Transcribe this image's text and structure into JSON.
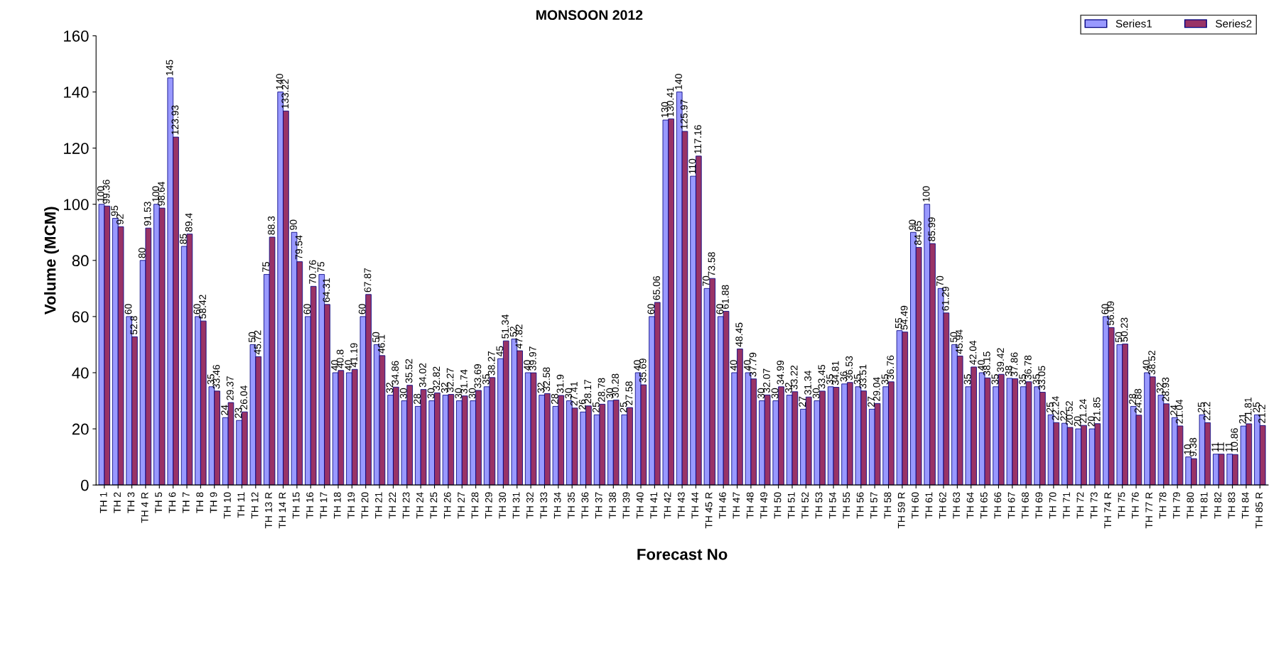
{
  "chart_data": {
    "type": "bar",
    "title": "MONSOON 2012",
    "xlabel": "Forecast No",
    "ylabel": "Volume (MCM)",
    "categories": [
      "TH 1",
      "TH 2",
      "TH 3",
      "TH 4 R",
      "TH 5",
      "TH 6",
      "TH 7",
      "TH 8",
      "TH 9",
      "TH 10",
      "TH 11",
      "TH 12",
      "TH 13 R",
      "TH 14 R",
      "TH 15",
      "TH 16",
      "TH 17",
      "TH 18",
      "TH 19",
      "TH 20",
      "TH 21",
      "TH 22",
      "TH 23",
      "TH 24",
      "TH 25",
      "TH 26",
      "TH 27",
      "TH 28",
      "TH 29",
      "TH 30",
      "TH 31",
      "TH 32",
      "TH 33",
      "TH 34",
      "TH 35",
      "TH 36",
      "TH 37",
      "TH 38",
      "TH 39",
      "TH 40",
      "TH 41",
      "TH 42",
      "TH 43",
      "TH 44",
      "TH 45 R",
      "TH 46",
      "TH 47",
      "TH 48",
      "TH 49",
      "TH 50",
      "TH 51",
      "TH 52",
      "TH 53",
      "TH 54",
      "TH 55",
      "TH 56",
      "TH 57",
      "TH 58",
      "TH 59 R",
      "TH 60",
      "TH 61",
      "TH 62",
      "TH 63",
      "TH 64",
      "TH 65",
      "TH 66",
      "TH 67",
      "TH 68",
      "TH 69",
      "TH 70",
      "TH 71",
      "TH 72",
      "TH 73",
      "TH 74 R",
      "TH 75",
      "TH 76",
      "TH 77 R",
      "TH 78",
      "TH 79",
      "TH 80",
      "TH 81",
      "TH 82",
      "TH 83",
      "TH 84",
      "TH 85 R"
    ],
    "series": [
      {
        "name": "Series1",
        "color": "#9999ff",
        "values": [
          100,
          95,
          60,
          80,
          100,
          145,
          85,
          60,
          35,
          24,
          23,
          50,
          75,
          140,
          90,
          60,
          75,
          40,
          40,
          60,
          50,
          32,
          30,
          28,
          30,
          32,
          30,
          30,
          35,
          45,
          52,
          40,
          32,
          28,
          30,
          26,
          25,
          30,
          25,
          40,
          60,
          130,
          140,
          110,
          70,
          60,
          40,
          40,
          30,
          30,
          32,
          27,
          30,
          35,
          36,
          35,
          27,
          35,
          55,
          90,
          100,
          70,
          50,
          35,
          40,
          35,
          38,
          35,
          35,
          25,
          22,
          20,
          20,
          60,
          50,
          28,
          40,
          32,
          24,
          10,
          25,
          11,
          11,
          21,
          25
        ]
      },
      {
        "name": "Series2",
        "color": "#993366",
        "values": [
          99.36,
          92,
          52.8,
          91.53,
          98.64,
          123.93,
          89.4,
          58.42,
          33.46,
          29.37,
          26.04,
          45.72,
          88.3,
          133.22,
          79.54,
          70.76,
          64.31,
          40.8,
          41.19,
          67.87,
          46.1,
          34.86,
          35.52,
          34.02,
          32.82,
          32.27,
          31.74,
          33.69,
          38.27,
          51.34,
          47.82,
          39.97,
          32.58,
          31.9,
          27.41,
          28.17,
          28.78,
          30.28,
          27.58,
          35.69,
          65.06,
          130.41,
          125.97,
          117.16,
          73.58,
          61.88,
          48.45,
          37.79,
          32.07,
          34.99,
          33.22,
          31.34,
          33.45,
          34.81,
          36.53,
          33.51,
          29.04,
          36.76,
          54.49,
          84.65,
          85.99,
          61.29,
          45.94,
          42.04,
          38.15,
          39.42,
          37.86,
          36.78,
          33.05,
          22.24,
          20.52,
          21.24,
          21.85,
          56.09,
          50.23,
          24.88,
          38.52,
          28.93,
          21.04,
          9.38,
          22.2,
          11,
          10.86,
          21.81,
          21.2
        ]
      }
    ],
    "ylim": [
      0,
      160
    ],
    "yticks": [
      0,
      20,
      40,
      60,
      80,
      100,
      120,
      140,
      160
    ],
    "grid": false,
    "legend": "top right",
    "data_labels": true
  }
}
